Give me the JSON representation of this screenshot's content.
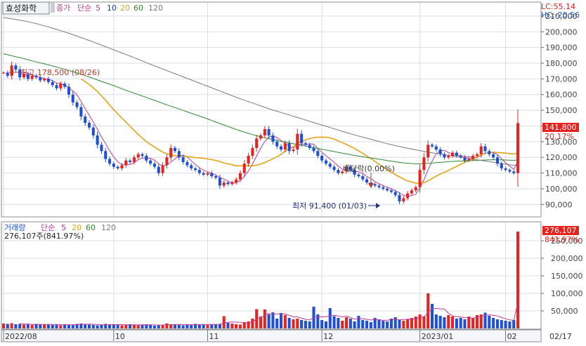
{
  "header": {
    "stock_name": "효성화학",
    "close_label": "종가",
    "ma_type_label": "단순",
    "ma_periods": [
      "5",
      "10",
      "20",
      "60",
      "120"
    ],
    "lc_label": "LC:55.14",
    "hc_label": "HC:-20.56"
  },
  "volume_header": {
    "label": "거래량",
    "ma_type_label": "단순",
    "ma_periods": [
      "5",
      "20",
      "60",
      "120"
    ],
    "summary": "276,107주(841.97%)"
  },
  "annotations": {
    "high": "최고 178,500 (08/26)",
    "low": "최저 91,400 (01/03)",
    "dividend": "배당락(0.00%)"
  },
  "badges": {
    "price": "141,800",
    "price_pct": "20.17%",
    "volume": "276,107",
    "volume_pct": "841.97%"
  },
  "colors": {
    "up": "#e8221e",
    "down": "#1f4fd8",
    "ma5": "#c0389c",
    "ma10": "#1f3f9a",
    "ma20": "#e6a417",
    "ma60": "#2e8b2e",
    "ma120": "#7a7a7a",
    "grid": "#d9dde6"
  },
  "chart_data": [
    {
      "type": "candlestick",
      "title": "효성화학",
      "series": [
        {
          "name": "종가",
          "values": [
            174000,
            172000,
            178500,
            176000,
            171000,
            173000,
            170000,
            172000,
            171000,
            169000,
            170000,
            168000,
            166000,
            164000,
            167000,
            165000,
            160000,
            155000,
            152000,
            146000,
            142000,
            139000,
            134000,
            128000,
            124000,
            119000,
            116000,
            114000,
            113000,
            115000,
            118000,
            117000,
            120000,
            122000,
            121000,
            118000,
            116000,
            114000,
            110000,
            115000,
            120000,
            126000,
            124000,
            120000,
            117000,
            115000,
            113000,
            112000,
            110000,
            109000,
            110000,
            108000,
            107000,
            102000,
            104000,
            103000,
            104000,
            106000,
            110000,
            116000,
            121000,
            126000,
            132000,
            134000,
            138000,
            134000,
            130000,
            127000,
            125000,
            129000,
            124000,
            125000,
            135000,
            129000,
            128000,
            126000,
            124000,
            121000,
            118000,
            116000,
            114000,
            112000,
            110000,
            111000,
            114000,
            112000,
            109000,
            108000,
            106000,
            104000,
            103000,
            102000,
            101000,
            100000,
            99000,
            98000,
            96000,
            92000,
            94000,
            97000,
            99000,
            101000,
            112000,
            120000,
            128000,
            127000,
            125000,
            122000,
            120000,
            121000,
            123000,
            121000,
            120000,
            118000,
            119000,
            121000,
            122000,
            127000,
            124000,
            122000,
            120000,
            116000,
            113000,
            112000,
            111000,
            110000,
            141800
          ]
        },
        {
          "name": "5",
          "values": [
            null,
            null,
            null,
            null,
            174300,
            174100,
            173700,
            172400,
            171400,
            171000,
            170000,
            170000,
            168800,
            167400,
            167000,
            166000,
            164400,
            162200,
            159800,
            155600,
            151000,
            146800,
            142600,
            137800,
            133000,
            128800,
            124200,
            120200,
            117200,
            115400,
            115200,
            115400,
            116600,
            118400,
            119600,
            119600,
            119400,
            118200,
            115800,
            114600,
            115000,
            117000,
            119000,
            121000,
            121400,
            120400,
            117800,
            115400,
            113400,
            111800,
            110800,
            109800,
            108800,
            107200,
            106200,
            104800,
            104000,
            103800,
            105400,
            107800,
            111400,
            115800,
            121000,
            125800,
            130200,
            132800,
            133600,
            132600,
            130800,
            129000,
            127000,
            126000,
            127600,
            128400,
            128200,
            128600,
            128400,
            125600,
            123400,
            121000,
            119000,
            116800,
            114400,
            112600,
            111800,
            111600,
            111200,
            110800,
            109800,
            107800,
            106400,
            104600,
            103200,
            102000,
            101000,
            100000,
            98800,
            97400,
            95800,
            95400,
            95600,
            96600,
            100600,
            105800,
            112000,
            117600,
            122400,
            124400,
            124400,
            123000,
            122200,
            121400,
            121000,
            120600,
            120400,
            119800,
            119800,
            121400,
            122600,
            123200,
            123000,
            121800,
            119000,
            116600,
            114400,
            112400,
            117600
          ]
        },
        {
          "name": "20",
          "values": [
            null,
            null,
            null,
            null,
            null,
            null,
            null,
            null,
            null,
            null,
            null,
            null,
            null,
            null,
            null,
            null,
            null,
            null,
            null,
            170000,
            168200,
            166400,
            164300,
            162000,
            159200,
            156400,
            153300,
            150400,
            147600,
            145000,
            142400,
            139800,
            137200,
            134600,
            132300,
            130000,
            128300,
            126600,
            124900,
            123300,
            122300,
            121600,
            121100,
            120900,
            120700,
            120500,
            120200,
            119900,
            119700,
            119400,
            119000,
            118600,
            118100,
            117300,
            116500,
            115900,
            115300,
            114600,
            114600,
            114700,
            114800,
            114700,
            115000,
            115700,
            116700,
            117900,
            119100,
            120400,
            122000,
            124000,
            125400,
            126800,
            128800,
            130200,
            131200,
            132000,
            132500,
            132800,
            132900,
            132800,
            132400,
            131600,
            130500,
            129400,
            128200,
            127000,
            125600,
            124100,
            122600,
            120900,
            119200,
            117400,
            115500,
            113800,
            112000,
            110500,
            109000,
            107600,
            106200,
            105000,
            104300,
            103600,
            103400,
            103900,
            105000,
            106500,
            108000,
            109400,
            110500,
            111700,
            113000,
            114300,
            115600,
            116800,
            118000,
            119200,
            120300,
            121500,
            122400,
            123100,
            123300,
            123100,
            122900,
            122700,
            122400,
            122100,
            122800
          ]
        },
        {
          "name": "60",
          "values": [
            186000,
            185400,
            184700,
            184100,
            183500,
            182900,
            182200,
            181500,
            180800,
            180200,
            179600,
            178900,
            178200,
            177500,
            176800,
            176100,
            175400,
            174600,
            173800,
            173000,
            172100,
            171200,
            170300,
            169300,
            168400,
            167500,
            166600,
            165700,
            164700,
            163700,
            162700,
            161800,
            160900,
            160000,
            159100,
            158200,
            157200,
            156300,
            155400,
            154400,
            153500,
            152600,
            151700,
            150800,
            149900,
            149000,
            148100,
            147200,
            146300,
            145400,
            144500,
            143500,
            142500,
            141500,
            140600,
            139700,
            138700,
            137800,
            136900,
            136100,
            135300,
            134500,
            133800,
            133100,
            132500,
            131900,
            131300,
            130700,
            130200,
            129700,
            129200,
            128700,
            128200,
            127700,
            127200,
            126700,
            126200,
            125700,
            125200,
            124700,
            124200,
            123700,
            123200,
            122700,
            122200,
            121700,
            121200,
            120800,
            120400,
            120000,
            119600,
            119200,
            118800,
            118400,
            118000,
            117600,
            117200,
            116800,
            116500,
            116300,
            116100,
            116000,
            116000,
            116100,
            116200,
            116400,
            116600,
            116800,
            117000,
            117200,
            117400,
            117600,
            117700,
            117800,
            117900,
            118000,
            118100,
            118200,
            118300,
            118400,
            118500,
            118500,
            118400,
            118300,
            118200,
            118100,
            118400
          ]
        },
        {
          "name": "120",
          "values": [
            209000,
            208700,
            208300,
            207900,
            207400,
            206900,
            206400,
            205800,
            205200,
            204500,
            203800,
            203100,
            202300,
            201500,
            200700,
            199900,
            199000,
            198100,
            197200,
            196300,
            195400,
            194500,
            193500,
            192500,
            191500,
            190500,
            189500,
            188500,
            187500,
            186500,
            185500,
            184500,
            183500,
            182500,
            181400,
            180300,
            179300,
            178300,
            177300,
            176300,
            175300,
            174300,
            173300,
            172300,
            171300,
            170300,
            169300,
            168300,
            167300,
            166300,
            165300,
            164300,
            163300,
            162300,
            161300,
            160300,
            159300,
            158300,
            157300,
            156400,
            155500,
            154600,
            153700,
            152800,
            151900,
            151000,
            150200,
            149400,
            148600,
            147800,
            147000,
            146200,
            145400,
            144600,
            143800,
            143000,
            142200,
            141400,
            140600,
            139800,
            139000,
            138200,
            137400,
            136600,
            135800,
            135000,
            134300,
            133600,
            132900,
            132200,
            131500,
            130800,
            130100,
            129400,
            128700,
            128100,
            127500,
            126900,
            126300,
            125800,
            125300,
            124800,
            124300,
            123800,
            123300,
            122900,
            122500,
            122100,
            121700,
            121300,
            120900,
            120500,
            120100,
            119700,
            119300,
            118900,
            118500,
            118100,
            117700,
            117300,
            116900,
            116500,
            116100,
            115700,
            115300,
            114900,
            114700
          ]
        }
      ],
      "y_ticks": [
        "90,000",
        "100,000",
        "110,000",
        "120,000",
        "130,000",
        "140,000",
        "150,000",
        "160,000",
        "170,000",
        "180,000",
        "190,000",
        "200,000",
        "210,000"
      ],
      "ylim": [
        83000,
        218000
      ]
    },
    {
      "type": "bar",
      "title": "거래량",
      "x_ticks": [
        "2022/08",
        "10",
        "11",
        "12",
        "2023/01",
        "02",
        "02/17"
      ],
      "values": [
        14000,
        13000,
        15000,
        12000,
        13000,
        11000,
        12000,
        10000,
        13000,
        12000,
        11000,
        12000,
        10000,
        11000,
        9000,
        12000,
        10000,
        11000,
        13000,
        14000,
        12000,
        11000,
        10000,
        9000,
        10000,
        13000,
        12000,
        11000,
        10000,
        9000,
        10000,
        12000,
        11000,
        9000,
        10000,
        12000,
        11000,
        8000,
        9000,
        10000,
        14000,
        12000,
        11000,
        10000,
        9000,
        11000,
        10000,
        13000,
        12000,
        11000,
        10000,
        12000,
        11000,
        13000,
        35000,
        16000,
        14000,
        12000,
        11000,
        18000,
        20000,
        28000,
        55000,
        34000,
        54000,
        40000,
        46000,
        28000,
        44000,
        38000,
        30000,
        26000,
        28000,
        24000,
        22000,
        20000,
        62000,
        40000,
        24000,
        20000,
        58000,
        35000,
        30000,
        22000,
        32000,
        28000,
        20000,
        36000,
        24000,
        22000,
        18000,
        30000,
        26000,
        22000,
        20000,
        28000,
        32000,
        24000,
        22000,
        26000,
        30000,
        34000,
        40000,
        34000,
        100000,
        70000,
        40000,
        36000,
        32000,
        38000,
        34000,
        28000,
        30000,
        26000,
        34000,
        30000,
        38000,
        40000,
        45000,
        36000,
        30000,
        26000,
        24000,
        22000,
        20000,
        24000,
        276107
      ],
      "ma5": [
        null,
        null,
        null,
        null,
        13400,
        12600,
        12600,
        11600,
        11800,
        11600,
        11600,
        11600,
        11600,
        11200,
        10600,
        11000,
        10400,
        10600,
        11000,
        12000,
        12000,
        12200,
        12000,
        11200,
        10400,
        10600,
        10800,
        11000,
        11000,
        11000,
        10400,
        10400,
        10400,
        10200,
        10400,
        10800,
        10600,
        10200,
        9800,
        10000,
        10600,
        11000,
        11200,
        11400,
        11200,
        11000,
        10600,
        10800,
        11000,
        11200,
        11400,
        11600,
        11400,
        11800,
        16200,
        17400,
        18400,
        18000,
        17600,
        14200,
        15000,
        17600,
        26400,
        31000,
        38200,
        42200,
        41600,
        40400,
        42400,
        41200,
        37200,
        33200,
        33200,
        29200,
        26000,
        24000,
        31200,
        33200,
        33600,
        33200,
        36800,
        37400,
        35400,
        33000,
        35400,
        31400,
        26400,
        27600,
        28000,
        26000,
        24000,
        26000,
        24000,
        23600,
        23200,
        25200,
        25600,
        25200,
        25200,
        26400,
        27200,
        27200,
        31200,
        33200,
        45600,
        55600,
        57200,
        56000,
        55600,
        43200,
        36000,
        33600,
        32400,
        30800,
        30400,
        29600,
        31600,
        33600,
        37400,
        38800,
        37800,
        35400,
        31200,
        27600,
        24400,
        23200,
        73300
      ],
      "ylim": [
        0,
        300000
      ]
    }
  ]
}
